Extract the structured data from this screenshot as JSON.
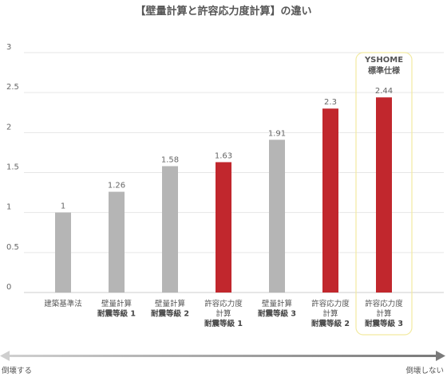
{
  "chart_data": {
    "type": "bar",
    "title": "【壁量計算と許容応力度計算】の違い",
    "ylim": [
      0,
      3
    ],
    "yticks": [
      "0",
      "0.5",
      "1",
      "1.5",
      "2",
      "2.5",
      "3"
    ],
    "grid": true,
    "categories": [
      [
        "建築基準法"
      ],
      [
        "壁量計算",
        "耐震等級 1"
      ],
      [
        "壁量計算",
        "耐震等級 2"
      ],
      [
        "許容応力度",
        "計算",
        "耐震等級 1"
      ],
      [
        "壁量計算",
        "耐震等級 3"
      ],
      [
        "許容応力度",
        "計算",
        "耐震等級 2"
      ],
      [
        "許容応力度",
        "計算",
        "耐震等級 3"
      ]
    ],
    "values": [
      1,
      1.26,
      1.58,
      1.63,
      1.91,
      2.3,
      2.44
    ],
    "value_labels": [
      "1",
      "1.26",
      "1.58",
      "1.63",
      "1.91",
      "2.3",
      "2.44"
    ],
    "bar_colors": [
      "#b5b5b5",
      "#b5b5b5",
      "#b5b5b5",
      "#c1272d",
      "#b5b5b5",
      "#c1272d",
      "#c1272d"
    ],
    "highlight": {
      "index": 6,
      "label_line1": "YSHOME",
      "label_line2": "標準仕様",
      "border_color": "#f2eaa0"
    },
    "arrow": {
      "left_label": "倒壊する",
      "right_label": "倒壊しない"
    }
  }
}
